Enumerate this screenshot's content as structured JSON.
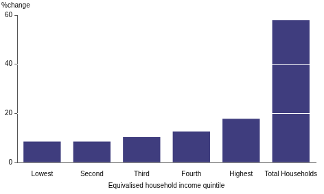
{
  "chart_data": {
    "type": "bar",
    "ylabel": "%change",
    "xlabel": "Equivalised household income quintile",
    "categories": [
      "Lowest",
      "Second",
      "Third",
      "Fourth",
      "Highest",
      "Total Households"
    ],
    "values": [
      8.5,
      8.5,
      10.3,
      12.6,
      17.8,
      58.0
    ],
    "color": "#3f3d7e",
    "ylim": [
      0,
      60
    ],
    "yticks": [
      0,
      20,
      40,
      60
    ],
    "grid": true
  }
}
